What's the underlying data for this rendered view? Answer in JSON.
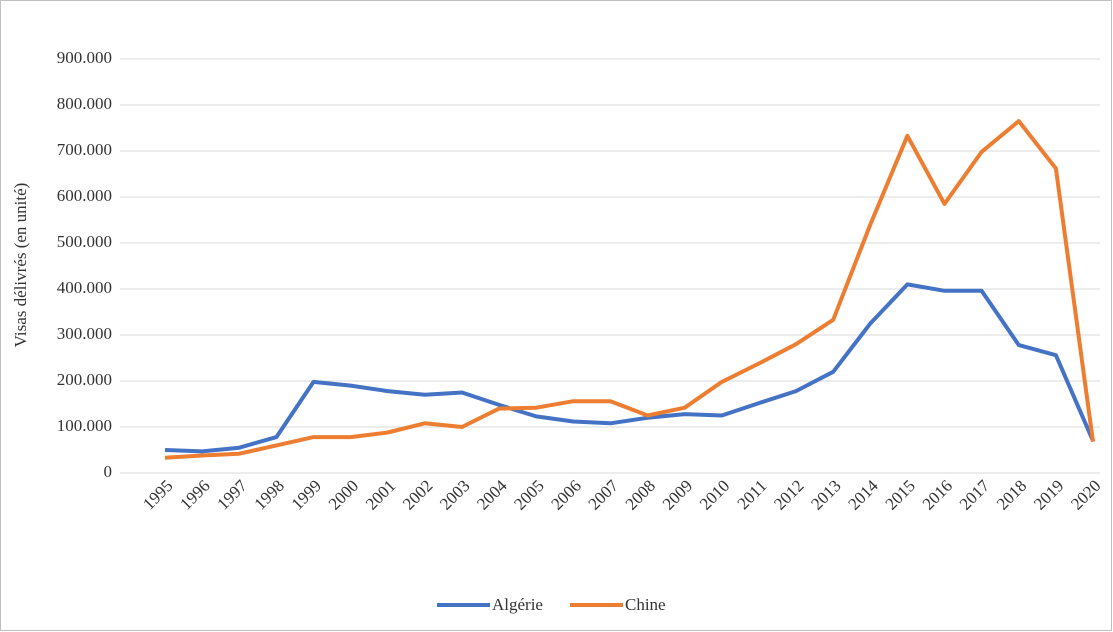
{
  "chart_data": {
    "type": "line",
    "y_label": "Visas délivrés (en unité)",
    "categories": [
      "1995",
      "1996",
      "1997",
      "1998",
      "1999",
      "2000",
      "2001",
      "2002",
      "2003",
      "2004",
      "2005",
      "2006",
      "2007",
      "2008",
      "2009",
      "2010",
      "2011",
      "2012",
      "2013",
      "2014",
      "2015",
      "2016",
      "2017",
      "2018",
      "2019",
      "2020"
    ],
    "series": [
      {
        "name": "Algérie",
        "color": "#4472c4",
        "values": [
          50000,
          47000,
          55000,
          78000,
          198000,
          190000,
          178000,
          170000,
          175000,
          148000,
          123000,
          112000,
          108000,
          120000,
          128000,
          125000,
          152000,
          178000,
          220000,
          325000,
          410000,
          396000,
          396000,
          278000,
          256000,
          70000
        ]
      },
      {
        "name": "Chine",
        "color": "#ed7d31",
        "values": [
          33000,
          38000,
          42000,
          60000,
          78000,
          78000,
          88000,
          108000,
          100000,
          140000,
          142000,
          156000,
          156000,
          125000,
          142000,
          198000,
          238000,
          280000,
          333000,
          540000,
          733000,
          585000,
          698000,
          765000,
          662000,
          68000
        ]
      }
    ],
    "ylim": [
      0,
      900000
    ],
    "yticks": [
      0,
      {
        "value": 100000,
        "label": "100.000"
      },
      {
        "value": 200000,
        "label": "200.000"
      },
      {
        "value": 300000,
        "label": "300.000"
      },
      {
        "value": 400000,
        "label": "400.000"
      },
      {
        "value": 500000,
        "label": "500.000"
      },
      {
        "value": 600000,
        "label": "600.000"
      },
      {
        "value": 700000,
        "label": "700.000"
      },
      {
        "value": 800000,
        "label": "800.000"
      },
      {
        "value": 900000,
        "label": "900.000"
      }
    ],
    "grid": true,
    "legend": "bottom"
  }
}
